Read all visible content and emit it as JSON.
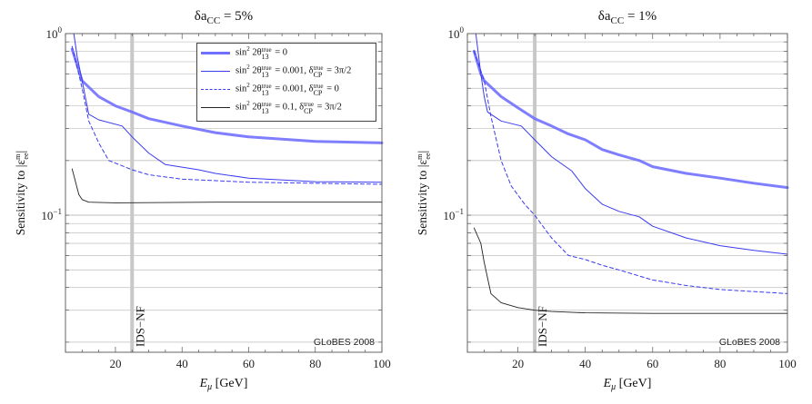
{
  "chart_data": [
    {
      "type": "line",
      "title": "δa_CC = 5%",
      "title_parts": {
        "main": "δa",
        "sub": "CC",
        "rest": " = 5%"
      },
      "xlabel": "E_μ [GeV]",
      "ylabel": "Sensitivity to |ε^m_ee|",
      "xlim": [
        5,
        100
      ],
      "ylim": [
        0.0176,
        1
      ],
      "yscale": "log",
      "xticks": [
        20,
        40,
        60,
        80,
        100
      ],
      "yticks": [
        {
          "base": "10",
          "exp": "0",
          "value": 1
        },
        {
          "base": "10",
          "exp": "−1",
          "value": 0.1
        }
      ],
      "grid": "horizontal minor log lines",
      "vline": {
        "x": 25,
        "label": "IDS−NF",
        "color": "#c8c8c8"
      },
      "annotation": "GLoBES 2008",
      "series": [
        {
          "key": "s0",
          "x": [
            7,
            10,
            15,
            20,
            25,
            30,
            40,
            50,
            60,
            80,
            100
          ],
          "y": [
            0.82,
            0.55,
            0.45,
            0.4,
            0.37,
            0.34,
            0.31,
            0.285,
            0.27,
            0.255,
            0.25
          ]
        },
        {
          "key": "s1",
          "x": [
            7.5,
            8.5,
            10,
            12,
            15,
            22,
            25,
            30,
            35,
            45,
            50,
            60,
            80,
            100
          ],
          "y": [
            1.0,
            0.75,
            0.55,
            0.36,
            0.335,
            0.31,
            0.27,
            0.22,
            0.19,
            0.178,
            0.17,
            0.16,
            0.153,
            0.152
          ]
        },
        {
          "key": "s2",
          "x": [
            7,
            10,
            12,
            15,
            18,
            25,
            30,
            40,
            60,
            100
          ],
          "y": [
            0.85,
            0.5,
            0.33,
            0.25,
            0.2,
            0.178,
            0.167,
            0.158,
            0.152,
            0.148
          ]
        },
        {
          "key": "s3",
          "x": [
            7,
            9,
            10,
            12,
            20,
            50,
            100
          ],
          "y": [
            0.18,
            0.13,
            0.122,
            0.118,
            0.117,
            0.118,
            0.118
          ]
        }
      ]
    },
    {
      "type": "line",
      "title": "δa_CC = 1%",
      "title_parts": {
        "main": "δa",
        "sub": "CC",
        "rest": " = 1%"
      },
      "xlabel": "E_μ [GeV]",
      "ylabel": "Sensitivity to |ε^m_ee|",
      "xlim": [
        5,
        100
      ],
      "ylim": [
        0.0176,
        1
      ],
      "yscale": "log",
      "xticks": [
        20,
        40,
        60,
        80,
        100
      ],
      "yticks": [
        {
          "base": "10",
          "exp": "0",
          "value": 1
        },
        {
          "base": "10",
          "exp": "−1",
          "value": 0.1
        }
      ],
      "grid": "horizontal minor log lines",
      "vline": {
        "x": 25,
        "label": "IDS−NF",
        "color": "#c8c8c8"
      },
      "annotation": "GLoBES 2008",
      "series": [
        {
          "key": "s0",
          "x": [
            7,
            9,
            10,
            15,
            20,
            25,
            30,
            35,
            40,
            45,
            50,
            56,
            60,
            70,
            80,
            90,
            100
          ],
          "y": [
            0.8,
            0.6,
            0.55,
            0.45,
            0.39,
            0.34,
            0.31,
            0.28,
            0.26,
            0.23,
            0.215,
            0.2,
            0.185,
            0.17,
            0.16,
            0.15,
            0.142
          ]
        },
        {
          "key": "s1",
          "x": [
            7.5,
            9,
            10,
            11,
            15,
            21,
            25,
            30,
            36,
            40,
            45,
            50,
            56,
            60,
            70,
            80,
            90,
            100
          ],
          "y": [
            1.0,
            0.6,
            0.45,
            0.37,
            0.33,
            0.31,
            0.26,
            0.21,
            0.175,
            0.14,
            0.115,
            0.105,
            0.098,
            0.087,
            0.075,
            0.068,
            0.064,
            0.061
          ]
        },
        {
          "key": "s2",
          "x": [
            7,
            10,
            12,
            15,
            18,
            22,
            25,
            30,
            35,
            40,
            45,
            50,
            60,
            70,
            80,
            100
          ],
          "y": [
            0.8,
            0.55,
            0.35,
            0.2,
            0.145,
            0.115,
            0.1,
            0.075,
            0.06,
            0.057,
            0.053,
            0.05,
            0.044,
            0.041,
            0.039,
            0.037
          ]
        },
        {
          "key": "s3",
          "x": [
            7,
            9,
            10,
            12,
            15,
            20,
            25,
            30,
            40,
            60,
            100
          ],
          "y": [
            0.085,
            0.07,
            0.055,
            0.037,
            0.033,
            0.031,
            0.03,
            0.0295,
            0.029,
            0.0288,
            0.0288
          ]
        }
      ]
    }
  ],
  "legend": {
    "placement": "top-right of left panel",
    "entries": [
      {
        "key": "s0",
        "style": "thick",
        "color": "#7070ff",
        "parts": [
          {
            "t": "sin"
          },
          {
            "sup": "2"
          },
          {
            "t": " 2θ"
          },
          {
            "sup": "true",
            "sub": "13"
          },
          {
            "t": " = 0"
          }
        ]
      },
      {
        "key": "s1",
        "style": "thin",
        "color": "#3a3af0",
        "parts": [
          {
            "t": "sin"
          },
          {
            "sup": "2"
          },
          {
            "t": " 2θ"
          },
          {
            "sup": "true",
            "sub": "13"
          },
          {
            "t": " = 0.001, δ"
          },
          {
            "sup": "true",
            "sub": "CP"
          },
          {
            "t": " = 3π/2"
          }
        ]
      },
      {
        "key": "s2",
        "style": "dashed",
        "color": "#3a3af0",
        "parts": [
          {
            "t": "sin"
          },
          {
            "sup": "2"
          },
          {
            "t": " 2θ"
          },
          {
            "sup": "true",
            "sub": "13"
          },
          {
            "t": " = 0.001, δ"
          },
          {
            "sup": "true",
            "sub": "CP"
          },
          {
            "t": " = 0"
          }
        ]
      },
      {
        "key": "s3",
        "style": "black",
        "color": "#222222",
        "parts": [
          {
            "t": "sin"
          },
          {
            "sup": "2"
          },
          {
            "t": " 2θ"
          },
          {
            "sup": "true",
            "sub": "13"
          },
          {
            "t": " = 0.1, δ"
          },
          {
            "sup": "true",
            "sub": "CP"
          },
          {
            "t": " = 3π/2"
          }
        ]
      }
    ]
  }
}
